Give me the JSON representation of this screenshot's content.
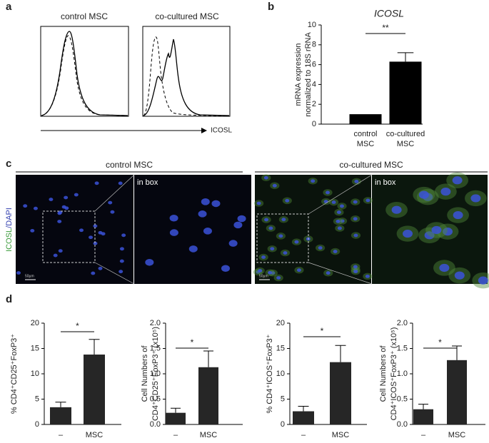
{
  "panel_labels": [
    "a",
    "b",
    "c",
    "d"
  ],
  "panel_a": {
    "titles": [
      "control MSC",
      "co-cultured MSC"
    ],
    "x_label": "ICOSL"
  },
  "panel_c": {
    "titles": [
      "control MSC",
      "co-cultured MSC"
    ],
    "inset_labels": [
      "in box",
      "in box"
    ],
    "y_label": [
      "ICOSL",
      "/DAPI"
    ],
    "scale_bars": [
      "50µm",
      "50µm"
    ]
  },
  "chart_data": [
    {
      "type": "bar",
      "title": "ICOSL",
      "ylabel": [
        "mRNA expression",
        "normalized to 18S rRNA"
      ],
      "categories": [
        "control MSC",
        "co-cultured MSC"
      ],
      "values": [
        1,
        6.3
      ],
      "errors": [
        0,
        0.9
      ],
      "ylim": [
        0,
        10
      ],
      "yticks": [
        0,
        2,
        4,
        6,
        8,
        10
      ],
      "significance": "**",
      "color": "#000000"
    },
    {
      "type": "bar",
      "ylabel": [
        "% CD4⁺CD25⁺FoxP3⁺"
      ],
      "categories": [
        "–",
        "MSC"
      ],
      "values": [
        3.4,
        13.8
      ],
      "errors": [
        1.0,
        3.0
      ],
      "ylim": [
        0,
        20
      ],
      "yticks": [
        0,
        5,
        10,
        15,
        20
      ],
      "significance": "*",
      "color": "#262626"
    },
    {
      "type": "bar",
      "ylabel": [
        "Cell Numbers of",
        "CD4⁺CD25⁺FoxP3⁺ (x10⁵)"
      ],
      "categories": [
        "–",
        "MSC"
      ],
      "values": [
        0.23,
        1.13
      ],
      "errors": [
        0.09,
        0.32
      ],
      "ylim": [
        0,
        2
      ],
      "yticks": [
        {
          "value": 0,
          "label": "0.0"
        },
        0.5,
        {
          "value": 1,
          "label": "1.0"
        },
        1.5,
        {
          "value": 2,
          "label": "2.0"
        }
      ],
      "significance": "*",
      "color": "#262626"
    },
    {
      "type": "bar",
      "ylabel": [
        "% CD4⁺ICOS⁺FoxP3⁺"
      ],
      "categories": [
        "–",
        "MSC"
      ],
      "values": [
        2.6,
        12.3
      ],
      "errors": [
        1.0,
        3.3
      ],
      "ylim": [
        0,
        20
      ],
      "yticks": [
        0,
        5,
        10,
        15,
        20
      ],
      "significance": "*",
      "color": "#262626"
    },
    {
      "type": "bar",
      "ylabel": [
        "Cell Numbers of",
        "CD4⁺ICOS⁺FoxP3⁺ (x10⁵)"
      ],
      "categories": [
        "–",
        "MSC"
      ],
      "values": [
        0.3,
        1.27
      ],
      "errors": [
        0.1,
        0.28
      ],
      "ylim": [
        0,
        2
      ],
      "yticks": [
        {
          "value": 0,
          "label": "0.0"
        },
        0.5,
        {
          "value": 1,
          "label": "1.0"
        },
        1.5,
        {
          "value": 2,
          "label": "2.0"
        }
      ],
      "significance": "*",
      "color": "#262626"
    }
  ]
}
